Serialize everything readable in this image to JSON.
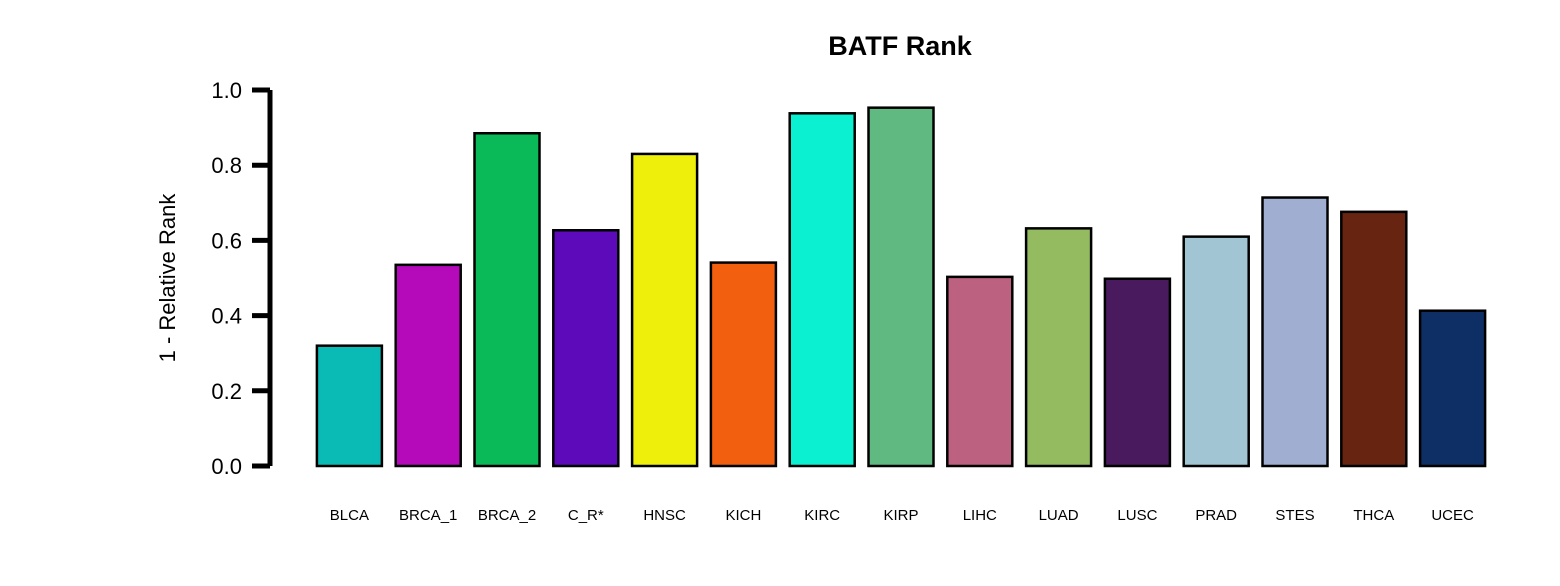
{
  "chart_data": {
    "type": "bar",
    "title": "BATF Rank",
    "xlabel": "",
    "ylabel": "1 - Relative Rank",
    "ylim": [
      0,
      1
    ],
    "yticks": [
      "0.0",
      "0.2",
      "0.4",
      "0.6",
      "0.8",
      "1.0"
    ],
    "grid": false,
    "categories": [
      "BLCA",
      "BRCA_1",
      "BRCA_2",
      "C_R*",
      "HNSC",
      "KICH",
      "KIRC",
      "KIRP",
      "LIHC",
      "LUAD",
      "LUSC",
      "PRAD",
      "STES",
      "THCA",
      "UCEC"
    ],
    "values": [
      0.32,
      0.535,
      0.885,
      0.627,
      0.83,
      0.541,
      0.938,
      0.953,
      0.503,
      0.632,
      0.498,
      0.61,
      0.714,
      0.676,
      0.413
    ],
    "colors": [
      "#0ABAB5",
      "#B40ABA",
      "#0ABA58",
      "#5D0ABA",
      "#EEF00C",
      "#F2600F",
      "#0CF0D2",
      "#5FB980",
      "#BD6181",
      "#95BB61",
      "#4A1A5E",
      "#A2C5D3",
      "#9FAED1",
      "#662411",
      "#0D2F65"
    ]
  }
}
